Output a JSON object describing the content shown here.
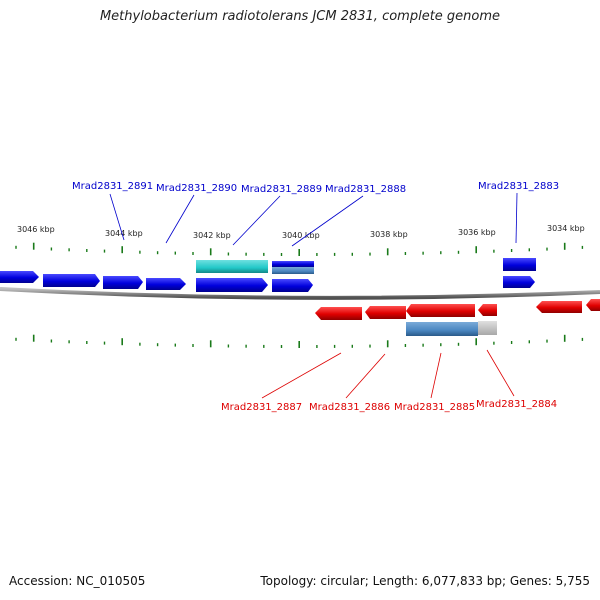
{
  "title": "Methylobacterium radiotolerans JCM 2831, complete genome",
  "accession": "Accession: NC_010505",
  "summary": "Topology: circular; Length: 6,077,833 bp; Genes: 5,755",
  "colors": {
    "forward_gene": "#0000e0",
    "reverse_gene": "#e00000",
    "rna_forward": "#22c8c8",
    "rna_reverse": "#4a86c0",
    "tick": "#1a7a1a",
    "backbone": "#808080"
  },
  "scale_labels": [
    "3046 kbp",
    "3044 kbp",
    "3042 kbp",
    "3040 kbp",
    "3038 kbp",
    "3036 kbp",
    "3034 kbp"
  ],
  "forward_gene_labels": [
    "Mrad2831_2891",
    "Mrad2831_2890",
    "Mrad2831_2889",
    "Mrad2831_2888",
    "Mrad2831_2883"
  ],
  "reverse_gene_labels": [
    "Mrad2831_2887",
    "Mrad2831_2886",
    "Mrad2831_2885",
    "Mrad2831_2884"
  ]
}
